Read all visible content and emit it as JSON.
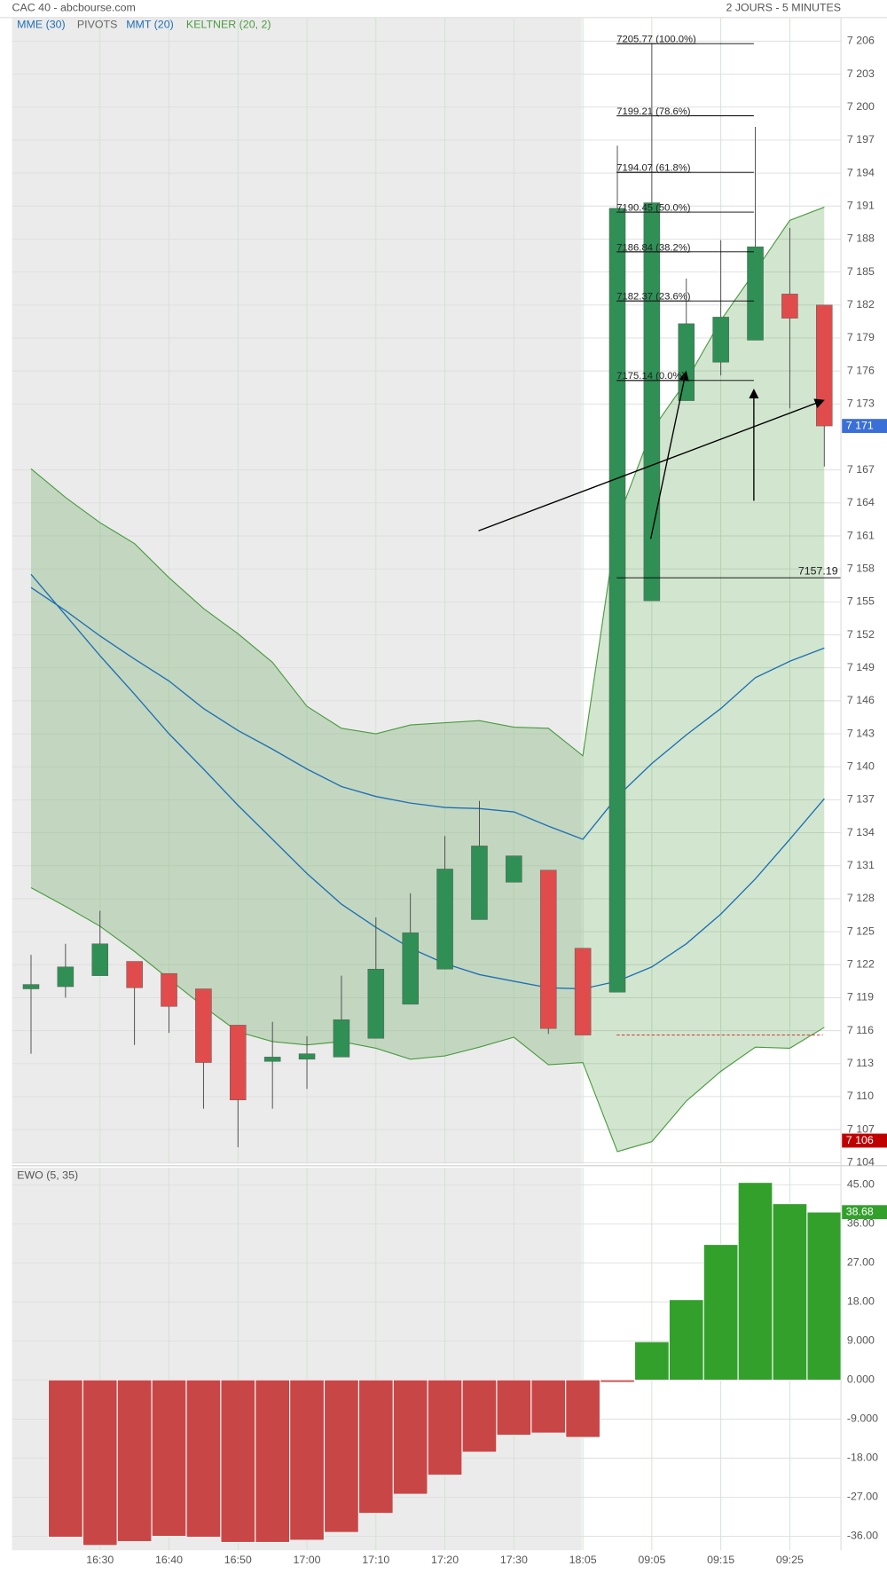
{
  "chart_data": [
    {
      "type": "candlestick",
      "title": "CAC 40 - abcbourse.com",
      "subtitle": "2 JOURS - 5 MINUTES",
      "open": [
        7119.8,
        7120.0,
        7121.0,
        7122.3,
        7121.2,
        7119.8,
        7116.5,
        7113.2,
        7113.4,
        7113.6,
        7115.3,
        7118.4,
        7121.6,
        7126.1,
        7129.5,
        7130.6,
        7123.5,
        7119.5,
        7155.1,
        7173.3,
        7176.8,
        7178.8,
        7183.0,
        7182.0
      ],
      "high": [
        7122.9,
        7123.9,
        7126.9,
        7122.3,
        7121.2,
        7119.8,
        7116.5,
        7116.8,
        7115.5,
        7121.0,
        7126.3,
        7128.5,
        7133.7,
        7136.9,
        7131.9,
        7130.6,
        7123.5,
        7196.5,
        7205.77,
        7184.4,
        7187.9,
        7198.2,
        7189.0,
        7182.0
      ],
      "low": [
        7113.9,
        7119.0,
        7121.0,
        7114.7,
        7115.8,
        7108.9,
        7105.4,
        7108.9,
        7110.7,
        7113.6,
        7115.3,
        7118.4,
        7121.6,
        7126.1,
        7129.5,
        7115.7,
        7115.6,
        7119.5,
        7155.1,
        7173.3,
        7175.6,
        7178.8,
        7172.6,
        7167.3
      ],
      "close": [
        7120.2,
        7121.8,
        7123.9,
        7119.9,
        7118.2,
        7113.1,
        7109.7,
        7113.6,
        7113.9,
        7117.0,
        7121.6,
        7124.9,
        7130.7,
        7132.8,
        7131.9,
        7116.2,
        7115.6,
        7190.8,
        7191.3,
        7180.3,
        7180.9,
        7187.3,
        7180.8,
        7171.0
      ],
      "color_up": "#2f8f55",
      "color_down": "#e04c4c",
      "series": [
        {
          "name": "MME (30)",
          "color": "#1f6fb4",
          "values": [
            7156.3,
            7154.2,
            7151.9,
            7149.8,
            7147.8,
            7145.3,
            7143.3,
            7141.6,
            7139.8,
            7138.2,
            7137.3,
            7136.7,
            7136.3,
            7136.2,
            7135.9,
            7134.6,
            7133.4,
            7137.3,
            7140.3,
            7142.9,
            7145.3,
            7148.1,
            7149.6,
            7150.8
          ]
        },
        {
          "name": "MMT (20)",
          "color": "#1f6fb4",
          "values": [
            7157.5,
            7153.8,
            7150.1,
            7146.6,
            7143.0,
            7139.8,
            7136.5,
            7133.4,
            7130.3,
            7127.5,
            7125.4,
            7123.5,
            7122.1,
            7121.1,
            7120.5,
            7119.9,
            7119.8,
            7120.5,
            7121.8,
            7123.9,
            7126.6,
            7129.8,
            7133.4,
            7137.1
          ]
        }
      ],
      "keltner": {
        "name": "KELTNER (20, 2)",
        "color": "#4a9a40",
        "upper": [
          7167.1,
          7164.5,
          7162.2,
          7160.3,
          7157.2,
          7154.4,
          7152.1,
          7149.5,
          7145.5,
          7143.5,
          7143.0,
          7143.8,
          7144.0,
          7144.2,
          7143.6,
          7143.5,
          7141.0,
          7162.4,
          7170.6,
          7175.1,
          7180.6,
          7185.1,
          7189.7,
          7190.9
        ],
        "lower": [
          7129.0,
          7127.3,
          7125.5,
          7123.2,
          7120.7,
          7118.2,
          7115.9,
          7115.0,
          7114.7,
          7115.0,
          7114.4,
          7113.4,
          7113.7,
          7114.5,
          7115.4,
          7112.9,
          7113.1,
          7105.0,
          7105.9,
          7109.6,
          7112.3,
          7114.5,
          7114.4,
          7116.3
        ]
      },
      "pivots": {
        "name": "PIVOTS",
        "color": "#666666",
        "levels": [
          {
            "value": 7205.77,
            "label": "7205.77  (100.0%)"
          },
          {
            "value": 7199.21,
            "label": "7199.21  (78.6%)"
          },
          {
            "value": 7194.07,
            "label": "7194.07  (61.8%)"
          },
          {
            "value": 7190.45,
            "label": "7190.45  (50.0%)"
          },
          {
            "value": 7186.84,
            "label": "7186.84  (38.2%)"
          },
          {
            "value": 7182.37,
            "label": "7182.37  (23.6%)"
          },
          {
            "value": 7175.14,
            "label": "7175.14  (0.0%)"
          }
        ],
        "base": 7157.19,
        "reference_line": 7115.6
      },
      "last_price": {
        "value": 7171,
        "label": "7 171"
      },
      "low_badge": {
        "value": 7106,
        "label": "7 106"
      },
      "ylim": [
        7103.9,
        7208.1
      ],
      "yticks": [
        {
          "value": 7104,
          "label": "7 104"
        },
        {
          "value": 7107,
          "label": "7 107"
        },
        {
          "value": 7110,
          "label": "7 110"
        },
        {
          "value": 7113,
          "label": "7 113"
        },
        {
          "value": 7116,
          "label": "7 116"
        },
        {
          "value": 7119,
          "label": "7 119"
        },
        {
          "value": 7122,
          "label": "7 122"
        },
        {
          "value": 7125,
          "label": "7 125"
        },
        {
          "value": 7128,
          "label": "7 128"
        },
        {
          "value": 7131,
          "label": "7 131"
        },
        {
          "value": 7134,
          "label": "7 134"
        },
        {
          "value": 7137,
          "label": "7 137"
        },
        {
          "value": 7140,
          "label": "7 140"
        },
        {
          "value": 7143,
          "label": "7 143"
        },
        {
          "value": 7146,
          "label": "7 146"
        },
        {
          "value": 7149,
          "label": "7 149"
        },
        {
          "value": 7152,
          "label": "7 152"
        },
        {
          "value": 7155,
          "label": "7 155"
        },
        {
          "value": 7158,
          "label": "7 158"
        },
        {
          "value": 7161,
          "label": "7 161"
        },
        {
          "value": 7164,
          "label": "7 164"
        },
        {
          "value": 7167,
          "label": "7 167"
        },
        {
          "value": 7173,
          "label": "7 173"
        },
        {
          "value": 7176,
          "label": "7 176"
        },
        {
          "value": 7179,
          "label": "7 179"
        },
        {
          "value": 7182,
          "label": "7 182"
        },
        {
          "value": 7185,
          "label": "7 185"
        },
        {
          "value": 7188,
          "label": "7 188"
        },
        {
          "value": 7191,
          "label": "7 191"
        },
        {
          "value": 7194,
          "label": "7 194"
        },
        {
          "value": 7197,
          "label": "7 197"
        },
        {
          "value": 7200,
          "label": "7 200"
        },
        {
          "value": 7203,
          "label": "7 203"
        },
        {
          "value": 7206,
          "label": "7 206"
        }
      ],
      "grid": true
    },
    {
      "type": "bar",
      "title": "EWO (5, 35)",
      "categories": [
        null,
        null,
        "16:30",
        null,
        "16:40",
        null,
        "16:50",
        null,
        "17:00",
        null,
        "17:10",
        null,
        "17:20",
        null,
        "17:30",
        null,
        "18:05",
        null,
        "09:05",
        null,
        "09:15",
        null,
        "09:25",
        null
      ],
      "values": [
        null,
        -36.2,
        -38.1,
        -37.2,
        -36.0,
        -36.2,
        -37.4,
        -37.4,
        -36.9,
        -35.1,
        -30.7,
        -26.3,
        -21.9,
        -16.6,
        -12.7,
        -12.2,
        -13.2,
        -0.5,
        8.8,
        18.5,
        31.2,
        45.5,
        40.6,
        38.68
      ],
      "color_up": "#33a02c",
      "color_down": "#c94646",
      "ylim": [
        -39.23,
        48.93
      ],
      "yticks": [
        {
          "value": 45,
          "label": "45.00"
        },
        {
          "value": 36,
          "label": "36.00"
        },
        {
          "value": 27,
          "label": "27.00"
        },
        {
          "value": 18,
          "label": "18.00"
        },
        {
          "value": 9,
          "label": "9.000"
        },
        {
          "value": 0,
          "label": "0.000"
        },
        {
          "value": -9,
          "label": "-9.000"
        },
        {
          "value": -18,
          "label": "-18.00"
        },
        {
          "value": -27,
          "label": "-27.00"
        },
        {
          "value": -36,
          "label": "-36.00"
        }
      ],
      "grid": true
    }
  ]
}
